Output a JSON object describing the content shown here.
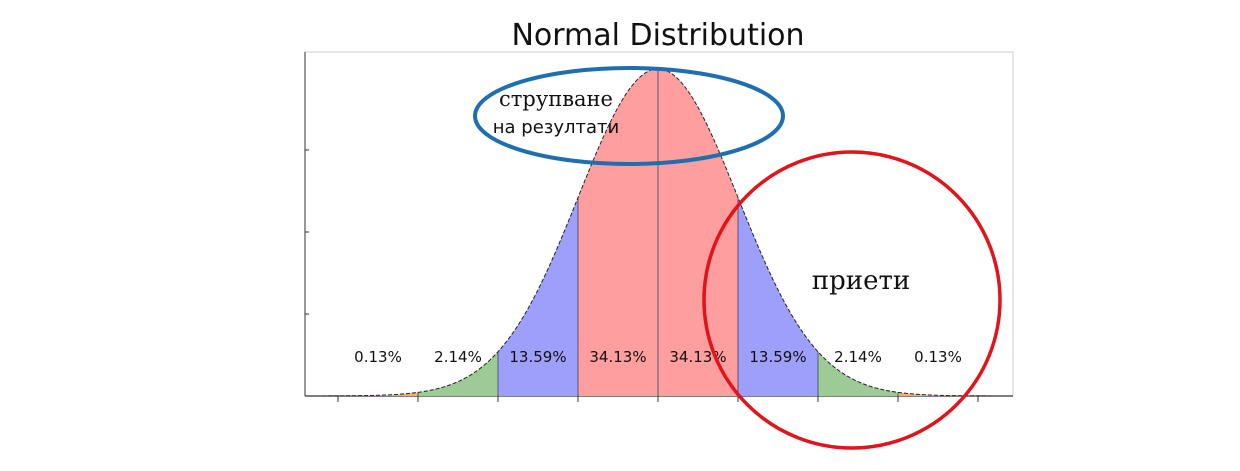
{
  "chart_data": {
    "type": "area",
    "title": "Normal Distribution",
    "xlabel": "",
    "ylabel": "",
    "xlim": [
      -4.2,
      4.2
    ],
    "ylim": [
      0,
      0.4
    ],
    "grid": false,
    "x_ticks": [
      -4,
      -3,
      -2,
      -1,
      0,
      1,
      2,
      3,
      4
    ],
    "bands": [
      {
        "from": -4,
        "to": -3,
        "label": "0.13%",
        "value": 0.13,
        "color": "#f2b35e"
      },
      {
        "from": -3,
        "to": -2,
        "label": "2.14%",
        "value": 2.14,
        "color": "#9ccb95"
      },
      {
        "from": -2,
        "to": -1,
        "label": "13.59%",
        "value": 13.59,
        "color": "#9e9efb"
      },
      {
        "from": -1,
        "to": 0,
        "label": "34.13%",
        "value": 34.13,
        "color": "#fe9e9e"
      },
      {
        "from": 0,
        "to": 1,
        "label": "34.13%",
        "value": 34.13,
        "color": "#fe9e9e"
      },
      {
        "from": 1,
        "to": 2,
        "label": "13.59%",
        "value": 13.59,
        "color": "#9e9efb"
      },
      {
        "from": 2,
        "to": 3,
        "label": "2.14%",
        "value": 2.14,
        "color": "#9ccb95"
      },
      {
        "from": 3,
        "to": 4,
        "label": "0.13%",
        "value": 0.13,
        "color": "#f2b35e"
      }
    ]
  },
  "annotations": {
    "top_line1": "струпване",
    "top_line2": "на резултати",
    "right_label": "приети",
    "top_ellipse_color": "#1f6fb0",
    "right_circle_color": "#e0141a"
  }
}
